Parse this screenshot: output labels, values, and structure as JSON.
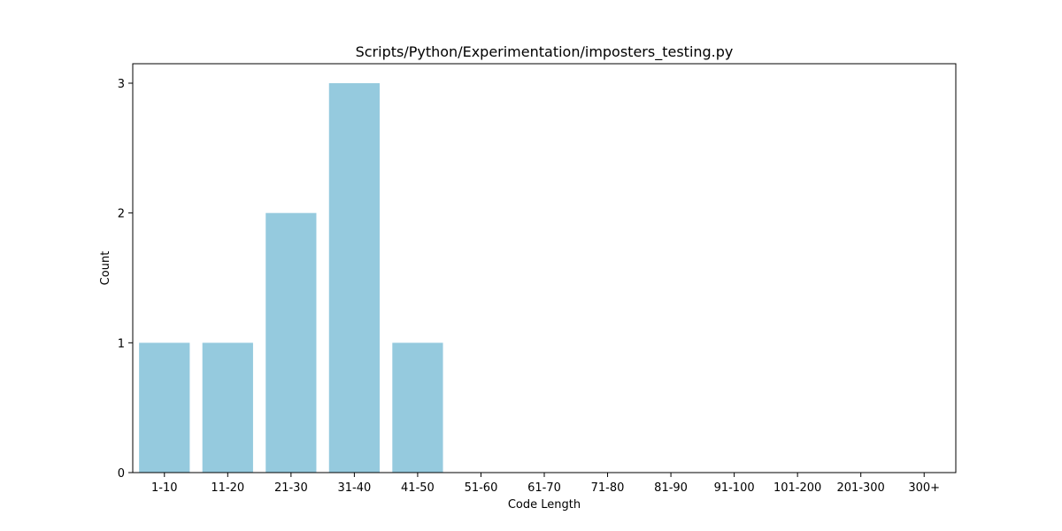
{
  "chart_data": {
    "type": "bar",
    "title": "Scripts/Python/Experimentation/imposters_testing.py",
    "xlabel": "Code Length",
    "ylabel": "Count",
    "categories": [
      "1-10",
      "11-20",
      "21-30",
      "31-40",
      "41-50",
      "51-60",
      "61-70",
      "71-80",
      "81-90",
      "91-100",
      "101-200",
      "201-300",
      "300+"
    ],
    "values": [
      1,
      1,
      2,
      3,
      1,
      0,
      0,
      0,
      0,
      0,
      0,
      0,
      0
    ],
    "ylim": [
      0,
      3.15
    ],
    "yticks": [
      0,
      1,
      2,
      3
    ],
    "grid": false,
    "legend": "none",
    "bar_color": "#95cade"
  }
}
